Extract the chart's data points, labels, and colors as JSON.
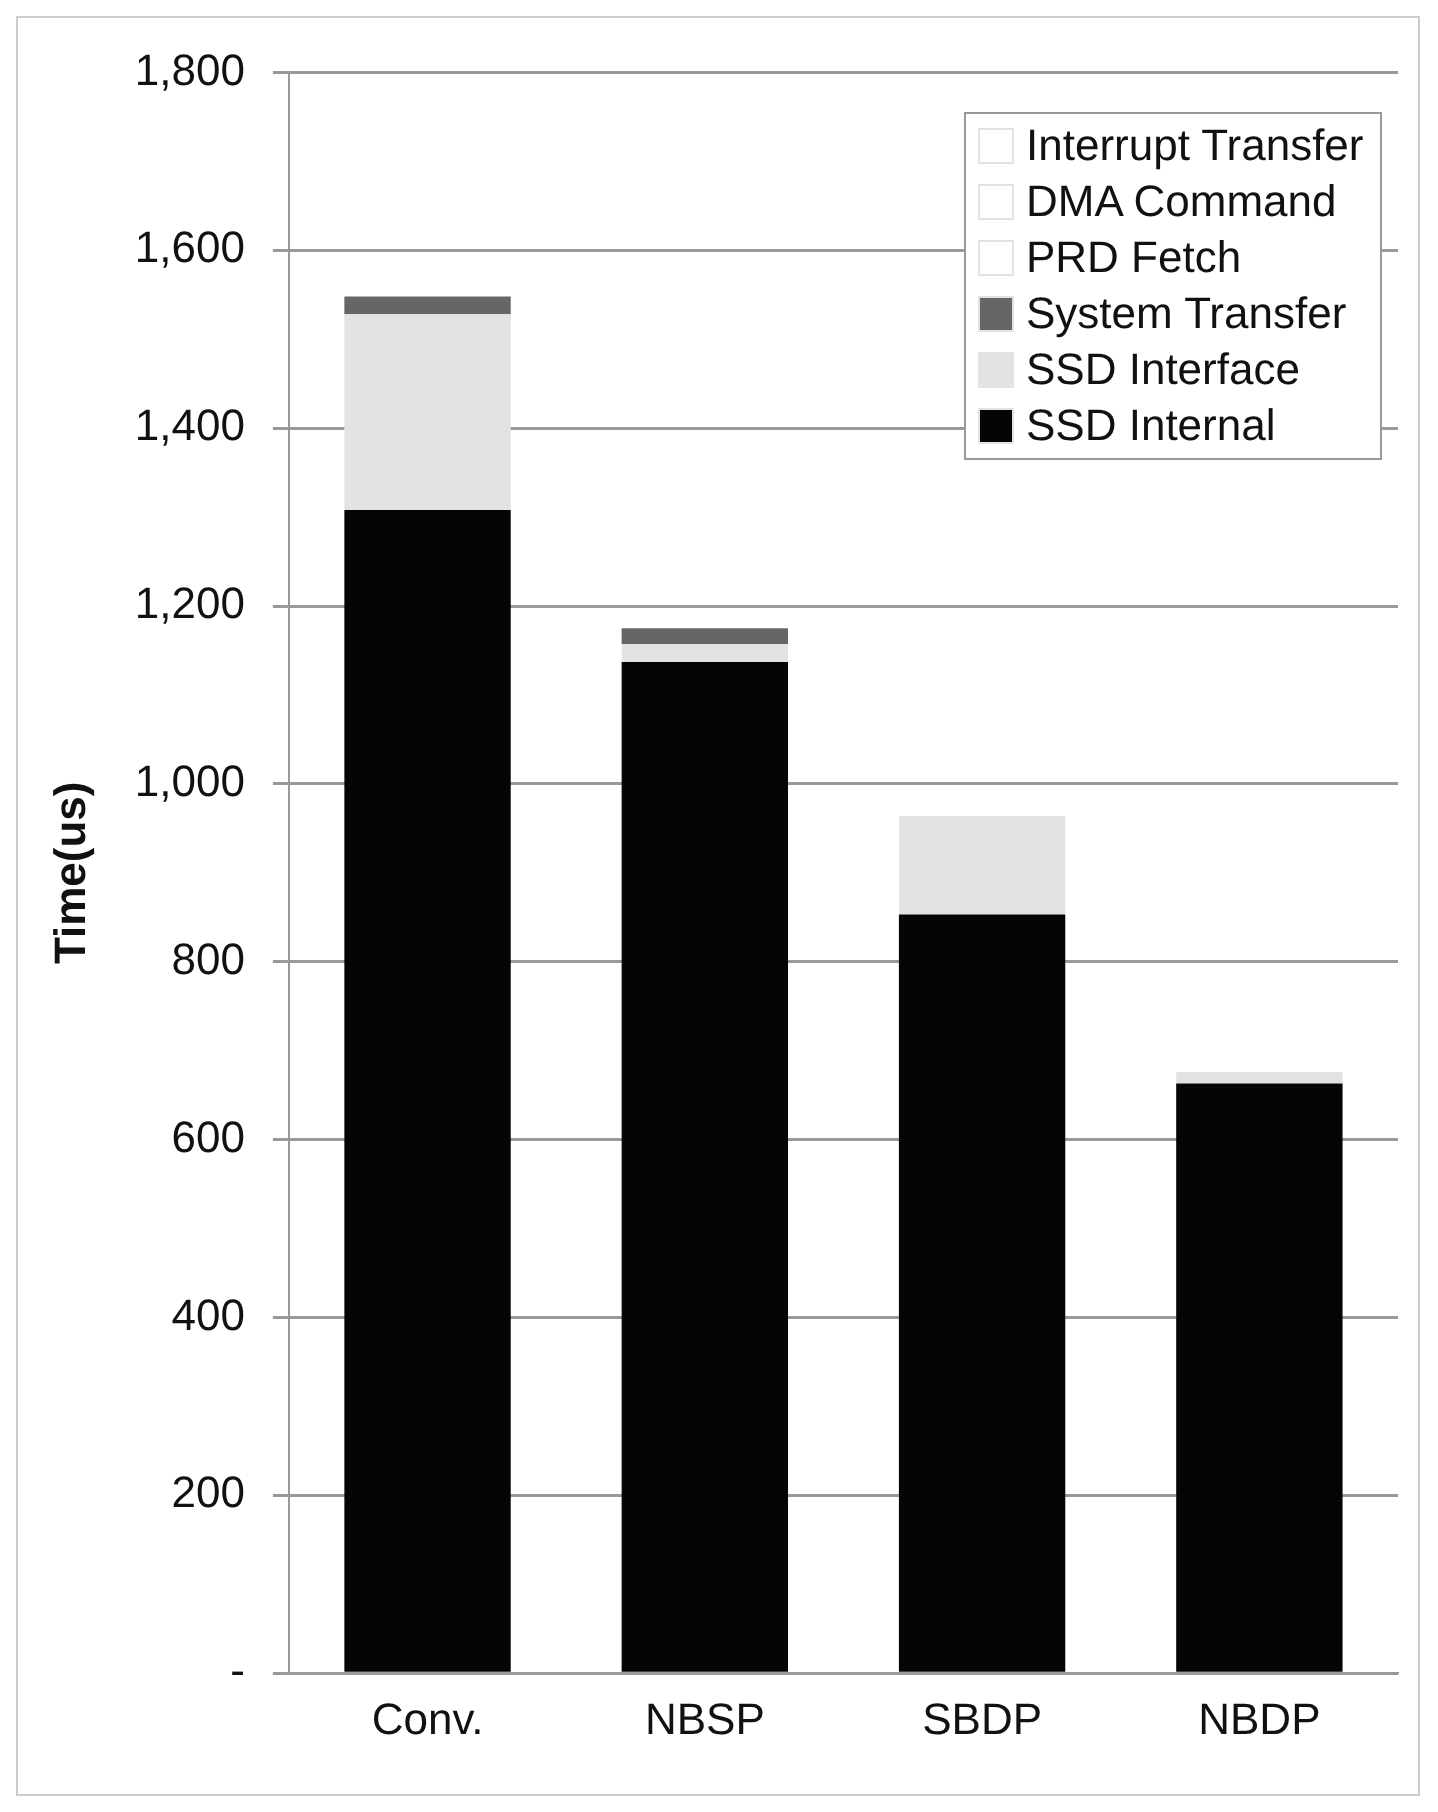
{
  "chart_data": {
    "type": "bar",
    "stacked": true,
    "ylabel": "Time(us)",
    "categories": [
      "Conv.",
      "NBSP",
      "SBDP",
      "NBDP"
    ],
    "series": [
      {
        "name": "SSD Internal",
        "color": "#050505",
        "values": [
          1308,
          1137,
          853,
          663
        ]
      },
      {
        "name": "SSD Interface",
        "color": "#e3e3e3",
        "values": [
          220,
          20,
          111,
          13
        ]
      },
      {
        "name": "System Transfer",
        "color": "#666666",
        "values": [
          20,
          18,
          0,
          0
        ]
      },
      {
        "name": "PRD Fetch",
        "color": "#ffffff",
        "values": [
          0,
          0,
          0,
          0
        ]
      },
      {
        "name": "DMA Command",
        "color": "#ffffff",
        "values": [
          0,
          0,
          0,
          0
        ]
      },
      {
        "name": "Interrupt Transfer",
        "color": "#ffffff",
        "values": [
          0,
          0,
          0,
          0
        ]
      }
    ],
    "ylim": [
      0,
      1800
    ],
    "yticks": [
      {
        "value": 0,
        "label": "-"
      },
      {
        "value": 200,
        "label": "200"
      },
      {
        "value": 400,
        "label": "400"
      },
      {
        "value": 600,
        "label": "600"
      },
      {
        "value": 800,
        "label": "800"
      },
      {
        "value": 1000,
        "label": "1,000"
      },
      {
        "value": 1200,
        "label": "1,200"
      },
      {
        "value": 1400,
        "label": "1,400"
      },
      {
        "value": 1600,
        "label": "1,600"
      },
      {
        "value": 1800,
        "label": "1,800"
      }
    ],
    "grid": "y",
    "legend": "top right"
  }
}
